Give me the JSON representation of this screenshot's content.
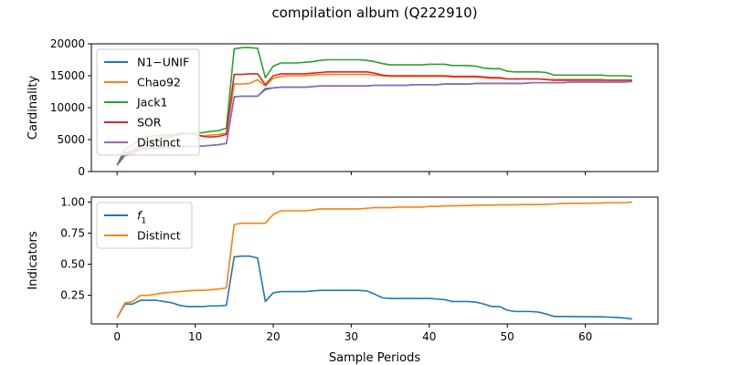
{
  "title": "compilation album (Q222910)",
  "xlabel": "Sample Periods",
  "chart_data": [
    {
      "type": "line",
      "ylabel": "Cardinality",
      "xlim": [
        -3.3,
        69.3
      ],
      "ylim": [
        0,
        20000
      ],
      "yticks": [
        0,
        5000,
        10000,
        15000,
        20000
      ],
      "ytick_labels": [
        "0",
        "5000",
        "10000",
        "15000",
        "20000"
      ],
      "xticks": [
        0,
        10,
        20,
        30,
        40,
        50,
        60
      ],
      "legend": "upper-left",
      "series": [
        {
          "name": "N1−UNIF",
          "color": "#1f77b4",
          "values": [
            1000,
            2800,
            2800,
            3600,
            3700,
            3800,
            3900,
            3900,
            4000,
            4000,
            4000,
            4000,
            4100,
            4200,
            4400,
            11700,
            11800,
            11800,
            11800,
            13000,
            13100,
            13200,
            13200,
            13200,
            13200,
            13300,
            13400,
            13400,
            13400,
            13400,
            13400,
            13400,
            13400,
            13500,
            13500,
            13500,
            13500,
            13500,
            13600,
            13600,
            13600,
            13600,
            13700,
            13700,
            13700,
            13700,
            13800,
            13800,
            13800,
            13800,
            13800,
            13800,
            13800,
            13900,
            13900,
            13900,
            13900,
            13900,
            14000,
            14000,
            14000,
            14000,
            14000,
            14000,
            14000,
            14000,
            14100
          ]
        },
        {
          "name": "Chao92",
          "color": "#ff7f0e",
          "values": [
            1000,
            2900,
            3400,
            4000,
            4700,
            5200,
            5400,
            5700,
            6000,
            6000,
            5800,
            5600,
            5700,
            5800,
            6000,
            13700,
            13700,
            13800,
            14400,
            13400,
            14600,
            14900,
            15000,
            15000,
            15000,
            15100,
            15200,
            15200,
            15200,
            15200,
            15200,
            15200,
            15200,
            15100,
            15000,
            14900,
            14900,
            14900,
            14900,
            14900,
            14900,
            14900,
            14900,
            14800,
            14800,
            14800,
            14800,
            14700,
            14600,
            14600,
            14500,
            14500,
            14500,
            14500,
            14500,
            14400,
            14400,
            14400,
            14400,
            14400,
            14400,
            14400,
            14400,
            14300,
            14300,
            14300,
            14300
          ]
        },
        {
          "name": "Jack1",
          "color": "#2ca02c",
          "values": [
            1000,
            3500,
            4200,
            5200,
            5500,
            5600,
            5700,
            5800,
            5900,
            5900,
            6000,
            6100,
            6300,
            6400,
            6800,
            19200,
            19400,
            19400,
            19300,
            14700,
            16500,
            17000,
            17000,
            17000,
            17100,
            17200,
            17400,
            17500,
            17500,
            17500,
            17500,
            17500,
            17400,
            17200,
            16900,
            16700,
            16700,
            16700,
            16700,
            16700,
            16800,
            16800,
            16800,
            16600,
            16600,
            16600,
            16500,
            16200,
            16100,
            16100,
            15700,
            15600,
            15600,
            15600,
            15600,
            15500,
            15100,
            15100,
            15100,
            15100,
            15100,
            15100,
            15100,
            15000,
            15000,
            15000,
            14900
          ]
        },
        {
          "name": "SOR",
          "color": "#d62728",
          "values": [
            1000,
            2700,
            3100,
            3900,
            4300,
            4800,
            5200,
            5500,
            5800,
            6000,
            5800,
            5500,
            5400,
            5500,
            5800,
            15200,
            15200,
            15300,
            15300,
            13600,
            15000,
            15300,
            15300,
            15300,
            15300,
            15400,
            15500,
            15600,
            15600,
            15600,
            15600,
            15600,
            15600,
            15400,
            15100,
            15000,
            15000,
            15000,
            15000,
            15000,
            15000,
            15000,
            15000,
            14900,
            14900,
            14900,
            14900,
            14800,
            14700,
            14700,
            14500,
            14500,
            14500,
            14500,
            14500,
            14400,
            14300,
            14300,
            14300,
            14300,
            14300,
            14300,
            14300,
            14300,
            14300,
            14300,
            14300
          ]
        },
        {
          "name": "Distinct",
          "color": "#9467bd",
          "values": [
            1000,
            2500,
            2700,
            3400,
            3500,
            3600,
            3600,
            3700,
            3800,
            3900,
            3900,
            4000,
            4100,
            4200,
            4400,
            11700,
            11800,
            11800,
            11800,
            12800,
            13100,
            13200,
            13200,
            13200,
            13200,
            13300,
            13400,
            13400,
            13400,
            13400,
            13400,
            13400,
            13400,
            13500,
            13500,
            13500,
            13500,
            13500,
            13600,
            13600,
            13600,
            13600,
            13700,
            13700,
            13700,
            13700,
            13800,
            13800,
            13800,
            13800,
            13800,
            13800,
            13800,
            13900,
            13900,
            13900,
            13900,
            13900,
            14000,
            14000,
            14000,
            14000,
            14000,
            14000,
            14000,
            14000,
            14100
          ]
        }
      ]
    },
    {
      "type": "line",
      "ylabel": "Indicators",
      "xlim": [
        -3.3,
        69.3
      ],
      "ylim": [
        0.02,
        1.04
      ],
      "yticks": [
        0.25,
        0.5,
        0.75,
        1.0
      ],
      "ytick_labels": [
        "0.25",
        "0.50",
        "0.75",
        "1.00"
      ],
      "xticks": [
        0,
        10,
        20,
        30,
        40,
        50,
        60
      ],
      "xtick_labels": [
        "0",
        "10",
        "20",
        "30",
        "40",
        "50",
        "60"
      ],
      "legend": "upper-left",
      "series": [
        {
          "name": "f",
          "name_sub": "1",
          "color": "#1f77b4",
          "values": [
            0.07,
            0.18,
            0.18,
            0.21,
            0.21,
            0.21,
            0.2,
            0.19,
            0.17,
            0.16,
            0.16,
            0.16,
            0.165,
            0.165,
            0.17,
            0.56,
            0.565,
            0.565,
            0.55,
            0.2,
            0.27,
            0.28,
            0.28,
            0.28,
            0.28,
            0.285,
            0.29,
            0.29,
            0.29,
            0.29,
            0.29,
            0.29,
            0.285,
            0.26,
            0.23,
            0.225,
            0.225,
            0.225,
            0.225,
            0.225,
            0.225,
            0.22,
            0.215,
            0.2,
            0.2,
            0.2,
            0.195,
            0.18,
            0.16,
            0.16,
            0.13,
            0.12,
            0.12,
            0.12,
            0.115,
            0.1,
            0.08,
            0.08,
            0.08,
            0.078,
            0.078,
            0.077,
            0.077,
            0.075,
            0.072,
            0.068,
            0.06
          ]
        },
        {
          "name": "Distinct",
          "color": "#ff7f0e",
          "values": [
            0.07,
            0.19,
            0.2,
            0.25,
            0.25,
            0.26,
            0.27,
            0.275,
            0.28,
            0.285,
            0.29,
            0.29,
            0.295,
            0.3,
            0.31,
            0.82,
            0.83,
            0.83,
            0.83,
            0.83,
            0.9,
            0.93,
            0.93,
            0.93,
            0.93,
            0.935,
            0.945,
            0.945,
            0.945,
            0.945,
            0.945,
            0.945,
            0.95,
            0.955,
            0.955,
            0.955,
            0.96,
            0.96,
            0.96,
            0.96,
            0.965,
            0.965,
            0.97,
            0.97,
            0.972,
            0.972,
            0.975,
            0.975,
            0.975,
            0.977,
            0.977,
            0.978,
            0.98,
            0.98,
            0.98,
            0.982,
            0.985,
            0.988,
            0.99,
            0.99,
            0.99,
            0.992,
            0.992,
            0.995,
            0.995,
            0.996,
            1.0
          ]
        }
      ]
    }
  ]
}
